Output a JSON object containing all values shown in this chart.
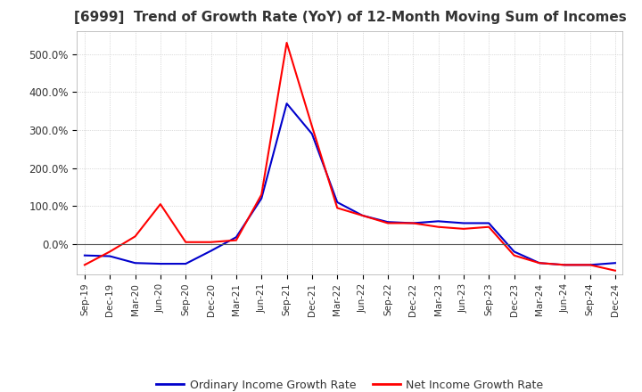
{
  "title": "[6999]  Trend of Growth Rate (YoY) of 12-Month Moving Sum of Incomes",
  "title_fontsize": 11,
  "background_color": "#ffffff",
  "grid_color": "#aaaaaa",
  "ordinary_color": "#0000cc",
  "net_color": "#ff0000",
  "legend_labels": [
    "Ordinary Income Growth Rate",
    "Net Income Growth Rate"
  ],
  "x_labels": [
    "Sep-19",
    "Dec-19",
    "Mar-20",
    "Jun-20",
    "Sep-20",
    "Dec-20",
    "Mar-21",
    "Jun-21",
    "Sep-21",
    "Dec-21",
    "Mar-22",
    "Jun-22",
    "Sep-22",
    "Dec-22",
    "Mar-23",
    "Jun-23",
    "Sep-23",
    "Dec-23",
    "Mar-24",
    "Jun-24",
    "Sep-24",
    "Dec-24"
  ],
  "ordinary_income": [
    -30,
    -32,
    -50,
    -52,
    -52,
    -18,
    18,
    120,
    370,
    290,
    110,
    75,
    58,
    55,
    60,
    55,
    55,
    -20,
    -50,
    -55,
    -55,
    -50
  ],
  "net_income": [
    -55,
    -20,
    20,
    105,
    5,
    5,
    10,
    130,
    530,
    310,
    95,
    75,
    55,
    55,
    45,
    40,
    45,
    -30,
    -50,
    -55,
    -55,
    -70
  ],
  "ylim_min": -80,
  "ylim_max": 560,
  "yticks": [
    0,
    100,
    200,
    300,
    400,
    500
  ],
  "zero_line_color": "#555555"
}
